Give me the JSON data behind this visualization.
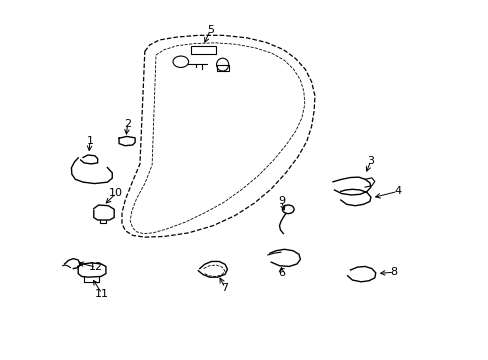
{
  "background_color": "#ffffff",
  "line_color": "#000000",
  "fig_width": 4.89,
  "fig_height": 3.6,
  "dpi": 100,
  "font_size": 8,
  "lw": 1.0
}
